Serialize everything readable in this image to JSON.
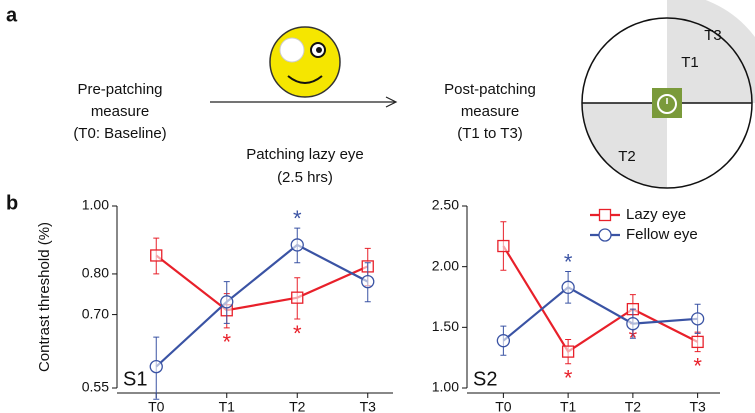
{
  "figure": {
    "panel_a": "a",
    "panel_b": "b",
    "pre": [
      "Pre-patching",
      "measure",
      "(T0: Baseline)"
    ],
    "process": [
      "Patching lazy eye",
      "(2.5 hrs)"
    ],
    "post": [
      "Post-patching",
      "measure",
      "(T1 to T3)"
    ],
    "quadrants": [
      "T1",
      "T2",
      "T3"
    ]
  },
  "chart_data": [
    {
      "type": "line",
      "label": "S1",
      "ylabel": "Contrast threshold (%)",
      "log_y": true,
      "categories": [
        "T0",
        "T1",
        "T2",
        "T3"
      ],
      "ylim": [
        0.55,
        1.0
      ],
      "yticks": [
        0.55,
        {
          "value": 0.7,
          "label": "0.70"
        },
        {
          "value": 0.8,
          "label": "0.80"
        },
        {
          "value": 1.0,
          "label": "1.00"
        }
      ],
      "series": [
        {
          "name": "Lazy eye",
          "color": "#e8202a",
          "marker": "square",
          "values": [
            0.85,
            0.71,
            0.74,
            0.82
          ],
          "errors": [
            0.05,
            0.04,
            0.05,
            0.05
          ],
          "markers": [
            null,
            "*",
            "*",
            null
          ]
        },
        {
          "name": "Fellow eye",
          "color": "#3a53a4",
          "marker": "circle",
          "values": [
            0.59,
            0.73,
            0.88,
            0.78
          ],
          "errors": [
            0.06,
            0.05,
            0.05,
            0.05
          ],
          "markers": [
            null,
            null,
            "*",
            null
          ]
        }
      ]
    },
    {
      "type": "line",
      "label": "S2",
      "log_y": false,
      "legend": "upper right",
      "categories": [
        "T0",
        "T1",
        "T2",
        "T3"
      ],
      "ylim": [
        1.0,
        2.5
      ],
      "yticks": [
        {
          "value": 1.0,
          "label": "1.00"
        },
        {
          "value": 1.5,
          "label": "1.50"
        },
        {
          "value": 2.0,
          "label": "2.00"
        },
        {
          "value": 2.5,
          "label": "2.50"
        }
      ],
      "series": [
        {
          "name": "Lazy eye",
          "color": "#e8202a",
          "marker": "square",
          "values": [
            2.17,
            1.3,
            1.65,
            1.38
          ],
          "errors": [
            0.2,
            0.1,
            0.12,
            0.08
          ],
          "markers": [
            null,
            "*",
            "*",
            "*"
          ]
        },
        {
          "name": "Fellow eye",
          "color": "#3a53a4",
          "marker": "circle",
          "values": [
            1.39,
            1.83,
            1.53,
            1.57
          ],
          "errors": [
            0.12,
            0.13,
            0.12,
            0.12
          ],
          "markers": [
            null,
            "*",
            null,
            null
          ]
        }
      ]
    }
  ]
}
